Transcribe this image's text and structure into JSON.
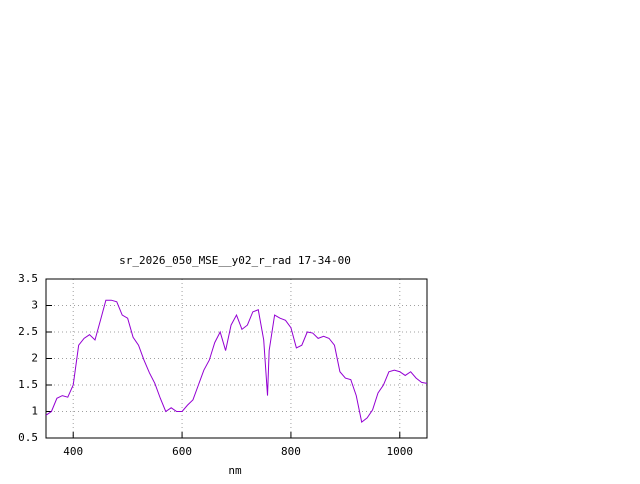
{
  "chart_data": {
    "type": "line",
    "title": "sr_2026_050_MSE__y02_r_rad 17-34-00",
    "xlabel": "nm",
    "x": [
      350,
      360,
      370,
      380,
      390,
      400,
      410,
      420,
      430,
      440,
      450,
      460,
      470,
      480,
      490,
      500,
      510,
      520,
      530,
      540,
      550,
      560,
      570,
      580,
      590,
      600,
      610,
      620,
      630,
      640,
      650,
      660,
      670,
      680,
      690,
      700,
      710,
      720,
      730,
      740,
      750,
      757,
      760,
      770,
      780,
      790,
      800,
      810,
      820,
      830,
      840,
      850,
      860,
      870,
      880,
      890,
      900,
      910,
      920,
      930,
      940,
      950,
      960,
      970,
      980,
      990,
      1000,
      1010,
      1020,
      1030,
      1040,
      1050
    ],
    "series": [
      {
        "color": "#9400d3",
        "values": [
          0.93,
          1.0,
          1.25,
          1.3,
          1.27,
          1.5,
          2.25,
          2.38,
          2.45,
          2.35,
          2.72,
          3.1,
          3.1,
          3.07,
          2.82,
          2.76,
          2.4,
          2.25,
          1.97,
          1.73,
          1.53,
          1.25,
          1.0,
          1.07,
          1.0,
          1.0,
          1.12,
          1.22,
          1.5,
          1.78,
          1.97,
          2.3,
          2.5,
          2.15,
          2.63,
          2.82,
          2.55,
          2.63,
          2.88,
          2.92,
          2.35,
          1.3,
          2.15,
          2.82,
          2.76,
          2.72,
          2.58,
          2.2,
          2.25,
          2.5,
          2.48,
          2.38,
          2.42,
          2.38,
          2.25,
          1.75,
          1.63,
          1.6,
          1.3,
          0.8,
          0.88,
          1.03,
          1.35,
          1.5,
          1.75,
          1.78,
          1.75,
          1.68,
          1.75,
          1.63,
          1.55,
          1.53
        ]
      }
    ],
    "xlim": [
      350,
      1050
    ],
    "xticks": [
      400,
      600,
      800,
      1000
    ],
    "ylim": [
      0.5,
      3.5
    ],
    "yticks": [
      0.5,
      1,
      1.5,
      2,
      2.5,
      3,
      3.5
    ],
    "grid": true
  }
}
